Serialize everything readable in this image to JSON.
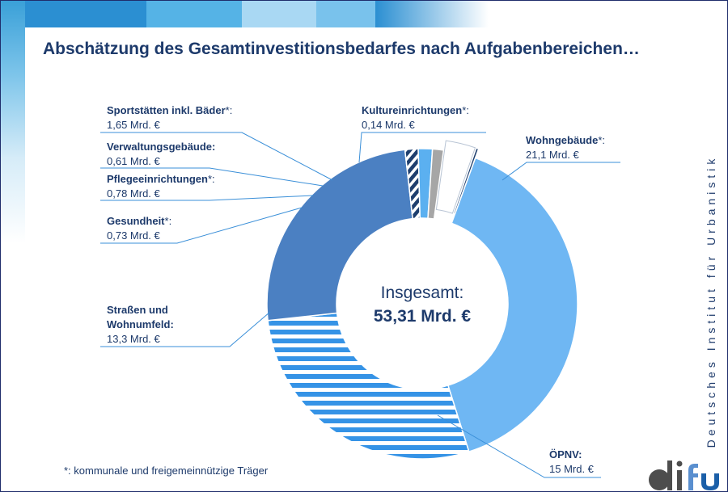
{
  "title": "Abschätzung des Gesamtinvestitionsbedarfes nach Aufgabenbereichen…",
  "footnote": "*: kommunale und freigemeinnützige Träger",
  "brand": {
    "side_text": "Deutsches Institut für Urbanistik",
    "logo_text": "difu"
  },
  "colors": {
    "navy": "#1d3a6b",
    "wohngebaeude": "#6fb7f3",
    "oepnv": "#3593e6",
    "strassen": "#4b80c2",
    "gesundheit": "#1f3f6e",
    "pflege": "#5bb0f0",
    "verwaltung": "#a6a6a6",
    "sport": "#ffffff",
    "kultur": "#1f3f6e"
  },
  "chart_data": {
    "type": "donut",
    "center": {
      "label": "Insgesamt:",
      "value": "53,31 Mrd. €"
    },
    "unit": "Mrd. €",
    "slices": [
      {
        "key": "wohngebaeude",
        "name": "Wohngebäude",
        "star": "*:",
        "value_label": "21,1 Mrd. €",
        "value": 21.1,
        "fill": "solid"
      },
      {
        "key": "oepnv",
        "name": "ÖPNV:",
        "star": "",
        "value_label": "15 Mrd. €",
        "value": 15,
        "fill": "hstripes"
      },
      {
        "key": "strassen",
        "name": "Straßen und Wohnumfeld:",
        "star": "",
        "value_label": "13,3 Mrd. €",
        "value": 13.3,
        "fill": "solid"
      },
      {
        "key": "gesundheit",
        "name": "Gesundheit",
        "star": "*:",
        "value_label": "0,73 Mrd. €",
        "value": 0.73,
        "fill": "dstripes"
      },
      {
        "key": "pflege",
        "name": "Pflegeeinrichtungen",
        "star": "*:",
        "value_label": "0,78 Mrd. €",
        "value": 0.78,
        "fill": "solid"
      },
      {
        "key": "verwaltung",
        "name": "Verwaltungsgebäude:",
        "star": "",
        "value_label": "0,61 Mrd. €",
        "value": 0.61,
        "fill": "solid"
      },
      {
        "key": "sport",
        "name": "Sportstätten inkl. Bäder",
        "star": "*:",
        "value_label": "1,65 Mrd. €",
        "value": 1.65,
        "fill": "outline",
        "exploded": true
      },
      {
        "key": "kultur",
        "name": "Kultureinrichtungen",
        "star": "*:",
        "value_label": "0,14 Mrd. €",
        "value": 0.14,
        "fill": "solid",
        "exploded": true
      }
    ]
  }
}
